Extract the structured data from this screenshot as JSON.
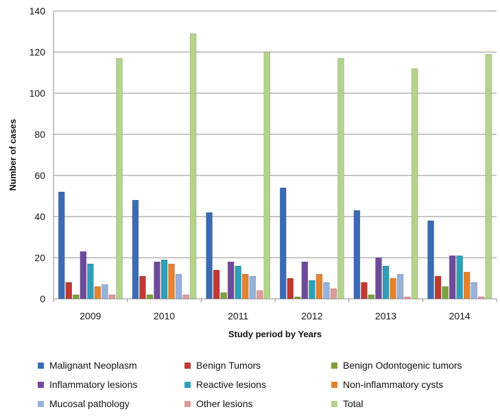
{
  "chart_data": {
    "type": "bar",
    "title": "",
    "xlabel": "Study period by Years",
    "ylabel": "Number of cases",
    "ylim": [
      0,
      140
    ],
    "yticks": [
      0,
      20,
      40,
      60,
      80,
      100,
      120,
      140
    ],
    "grid": true,
    "legend_position": "bottom",
    "categories": [
      "2009",
      "2010",
      "2011",
      "2012",
      "2013",
      "2014"
    ],
    "series": [
      {
        "name": "Malignant Neoplasm",
        "color": "#3a6cb4",
        "values": [
          52,
          48,
          42,
          54,
          43,
          38
        ]
      },
      {
        "name": "Benign Tumors",
        "color": "#bf3a33",
        "values": [
          8,
          11,
          14,
          10,
          8,
          11
        ]
      },
      {
        "name": "Benign Odontogenic tumors",
        "color": "#7fa03a",
        "values": [
          2,
          2,
          3,
          1,
          2,
          6
        ]
      },
      {
        "name": "Inflammatory lesions",
        "color": "#6e4a9b",
        "values": [
          23,
          18,
          18,
          18,
          20,
          21
        ]
      },
      {
        "name": "Reactive lesions",
        "color": "#2f9fb8",
        "values": [
          17,
          19,
          16,
          9,
          16,
          21
        ]
      },
      {
        "name": "Non-inflammatory cysts",
        "color": "#e3832e",
        "values": [
          6,
          17,
          12,
          12,
          10,
          13
        ]
      },
      {
        "name": "Mucosal pathology",
        "color": "#98b1db",
        "values": [
          7,
          12,
          11,
          8,
          12,
          8
        ]
      },
      {
        "name": "Other lesions",
        "color": "#de9a99",
        "values": [
          2,
          2,
          4,
          5,
          1,
          1
        ]
      },
      {
        "name": "Total",
        "color": "#b4d48b",
        "values": [
          117,
          129,
          120,
          117,
          112,
          119
        ]
      }
    ]
  }
}
